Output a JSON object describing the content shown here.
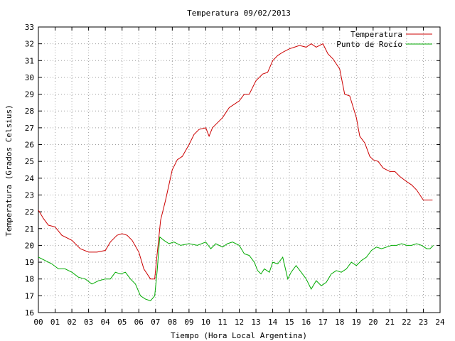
{
  "chart_data": {
    "type": "line",
    "title": "Temperatura 09/02/2013",
    "xlabel": "Tiempo (Hora Local Argentina)",
    "ylabel": "Temperatura (Grados Celsius)",
    "xlim": [
      0,
      24
    ],
    "ylim": [
      16,
      33
    ],
    "grid": true,
    "legend_position": "top-right",
    "x_ticks": [
      "00",
      "01",
      "02",
      "03",
      "04",
      "05",
      "06",
      "07",
      "08",
      "09",
      "10",
      "11",
      "12",
      "13",
      "14",
      "15",
      "16",
      "17",
      "18",
      "19",
      "20",
      "21",
      "22",
      "23",
      "24"
    ],
    "y_ticks": [
      "16",
      "17",
      "18",
      "19",
      "20",
      "21",
      "22",
      "23",
      "24",
      "25",
      "26",
      "27",
      "28",
      "29",
      "30",
      "31",
      "32",
      "33"
    ],
    "series": [
      {
        "name": "Temperatura",
        "color": "#cc0000",
        "x": [
          0.0,
          0.3,
          0.6,
          1.0,
          1.4,
          2.0,
          2.5,
          3.0,
          3.5,
          4.0,
          4.3,
          4.7,
          5.0,
          5.3,
          5.6,
          6.0,
          6.3,
          6.7,
          6.95,
          7.1,
          7.3,
          7.6,
          8.0,
          8.3,
          8.6,
          9.0,
          9.3,
          9.6,
          10.0,
          10.2,
          10.4,
          10.6,
          11.0,
          11.4,
          11.7,
          12.0,
          12.3,
          12.6,
          13.0,
          13.4,
          13.7,
          14.0,
          14.3,
          14.6,
          15.0,
          15.3,
          15.6,
          16.0,
          16.3,
          16.6,
          17.0,
          17.3,
          17.6,
          18.0,
          18.3,
          18.6,
          19.0,
          19.2,
          19.5,
          19.8,
          20.0,
          20.3,
          20.6,
          21.0,
          21.3,
          21.6,
          22.0,
          22.3,
          22.6,
          23.0,
          23.3,
          23.55
        ],
        "y": [
          22.1,
          21.6,
          21.2,
          21.1,
          20.6,
          20.3,
          19.8,
          19.6,
          19.6,
          19.7,
          20.2,
          20.6,
          20.7,
          20.6,
          20.3,
          19.6,
          18.6,
          18.0,
          18.0,
          19.5,
          21.5,
          22.7,
          24.5,
          25.1,
          25.3,
          26.0,
          26.6,
          26.9,
          27.0,
          26.5,
          27.0,
          27.2,
          27.6,
          28.2,
          28.4,
          28.6,
          29.0,
          29.0,
          29.8,
          30.2,
          30.3,
          31.0,
          31.3,
          31.5,
          31.7,
          31.8,
          31.9,
          31.8,
          32.0,
          31.8,
          32.0,
          31.4,
          31.1,
          30.5,
          29.0,
          28.9,
          27.6,
          26.5,
          26.1,
          25.3,
          25.1,
          25.0,
          24.6,
          24.4,
          24.4,
          24.1,
          23.8,
          23.6,
          23.3,
          22.7,
          22.7,
          22.7
        ]
      },
      {
        "name": "Punto de Rocío",
        "color": "#00aa00",
        "x": [
          0.0,
          0.4,
          0.8,
          1.2,
          1.6,
          2.0,
          2.4,
          2.8,
          3.2,
          3.6,
          4.0,
          4.3,
          4.6,
          4.9,
          5.2,
          5.5,
          5.8,
          6.1,
          6.4,
          6.7,
          6.95,
          7.1,
          7.25,
          7.5,
          7.8,
          8.1,
          8.5,
          9.0,
          9.5,
          10.0,
          10.3,
          10.6,
          11.0,
          11.3,
          11.6,
          12.0,
          12.3,
          12.6,
          12.9,
          13.1,
          13.3,
          13.5,
          13.8,
          14.0,
          14.3,
          14.6,
          14.9,
          15.1,
          15.4,
          15.7,
          16.0,
          16.3,
          16.6,
          16.9,
          17.2,
          17.5,
          17.8,
          18.1,
          18.4,
          18.7,
          19.0,
          19.3,
          19.6,
          19.9,
          20.2,
          20.5,
          20.8,
          21.1,
          21.4,
          21.7,
          22.0,
          22.3,
          22.6,
          22.9,
          23.2,
          23.4,
          23.6
        ],
        "y": [
          19.3,
          19.1,
          18.9,
          18.6,
          18.6,
          18.4,
          18.1,
          18.0,
          17.7,
          17.9,
          18.0,
          18.0,
          18.4,
          18.3,
          18.4,
          18.0,
          17.7,
          17.0,
          16.8,
          16.7,
          17.0,
          18.5,
          20.5,
          20.3,
          20.1,
          20.2,
          20.0,
          20.1,
          20.0,
          20.2,
          19.8,
          20.1,
          19.9,
          20.1,
          20.2,
          20.0,
          19.5,
          19.4,
          19.0,
          18.5,
          18.3,
          18.6,
          18.4,
          19.0,
          18.9,
          19.3,
          18.0,
          18.4,
          18.8,
          18.4,
          18.0,
          17.4,
          17.9,
          17.6,
          17.8,
          18.3,
          18.5,
          18.4,
          18.6,
          19.0,
          18.8,
          19.1,
          19.3,
          19.7,
          19.9,
          19.8,
          19.9,
          20.0,
          20.0,
          20.1,
          20.0,
          20.0,
          20.1,
          20.0,
          19.8,
          19.8,
          20.0
        ]
      }
    ]
  }
}
